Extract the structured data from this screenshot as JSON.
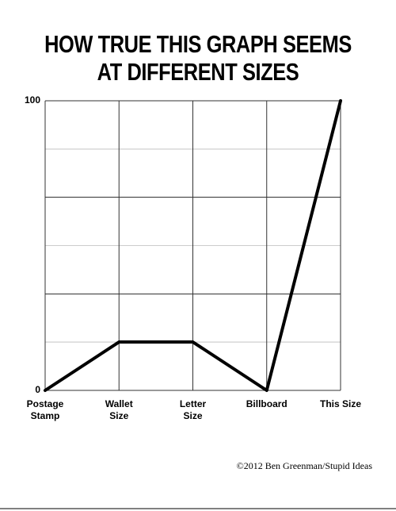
{
  "chart_data": {
    "type": "line",
    "title": [
      "HOW TRUE THIS GRAPH SEEMS",
      "AT DIFFERENT SIZES"
    ],
    "categories": [
      "Postage Stamp",
      "Wallet Size",
      "Letter Size",
      "Billboard",
      "This Size"
    ],
    "values": [
      0,
      16.7,
      16.7,
      0,
      100
    ],
    "color": "#000000",
    "ylim": [
      0,
      100
    ],
    "yticks": [
      0,
      100
    ],
    "ygrid": [
      0,
      16.7,
      33.3,
      50,
      66.7,
      83.3,
      100
    ],
    "grid": true,
    "credit": "©2012 Ben Greenman/Stupid Ideas"
  }
}
